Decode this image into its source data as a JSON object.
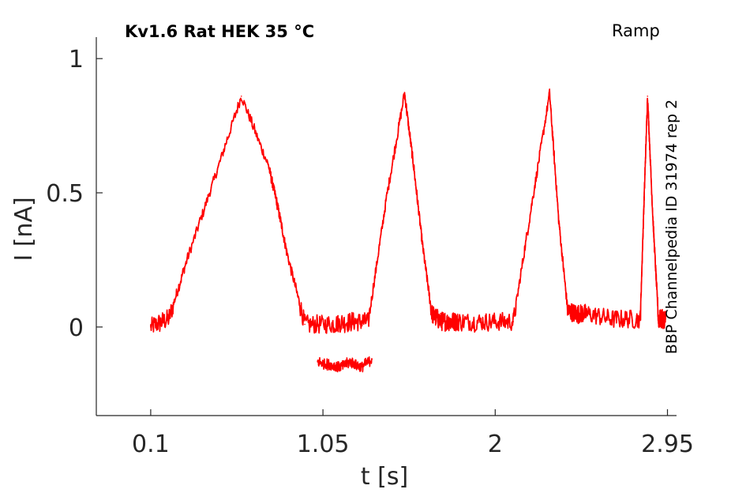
{
  "chart_data": {
    "type": "line",
    "title": "Kv1.6  Rat  HEK  35 °C",
    "title_right": "Ramp",
    "side_label": "BBP Channelpedia ID 31974 rep 2",
    "xlabel": "t [s]",
    "ylabel": "I [nA]",
    "xlim": [
      -0.2,
      3.0
    ],
    "ylim": [
      -0.33,
      1.08
    ],
    "xticks": [
      "0.1",
      "1.05",
      "2",
      "2.95"
    ],
    "yticks": [
      "0",
      "0.5",
      "1"
    ],
    "grid": false,
    "series": [
      {
        "color": "#ff0000",
        "x": [
          0.1,
          0.2,
          0.3,
          0.45,
          0.6,
          0.75,
          0.8,
          0.85,
          0.95,
          1.1,
          1.2,
          1.3,
          1.4,
          1.5,
          1.55,
          1.6,
          1.65,
          1.7,
          1.75,
          1.8,
          1.95,
          2.1,
          2.2,
          2.3,
          2.35,
          2.4,
          2.45,
          2.5,
          2.65,
          2.8,
          2.82,
          2.84,
          2.87,
          2.9,
          2.92,
          2.94
        ],
        "y": [
          0.0,
          0.03,
          0.25,
          0.55,
          0.86,
          0.6,
          0.45,
          0.28,
          0.01,
          0.01,
          0.02,
          0.02,
          0.48,
          0.87,
          0.6,
          0.3,
          0.05,
          0.02,
          0.02,
          0.02,
          0.02,
          0.02,
          0.45,
          0.87,
          0.4,
          0.06,
          0.05,
          0.05,
          0.03,
          0.03,
          0.45,
          0.86,
          0.4,
          0.03,
          0.03,
          0.03
        ]
      },
      {
        "color": "#ff0000",
        "x": [
          1.02,
          1.08,
          1.14,
          1.2,
          1.26,
          1.32
        ],
        "y": [
          -0.13,
          -0.14,
          -0.15,
          -0.13,
          -0.15,
          -0.12
        ]
      }
    ]
  }
}
